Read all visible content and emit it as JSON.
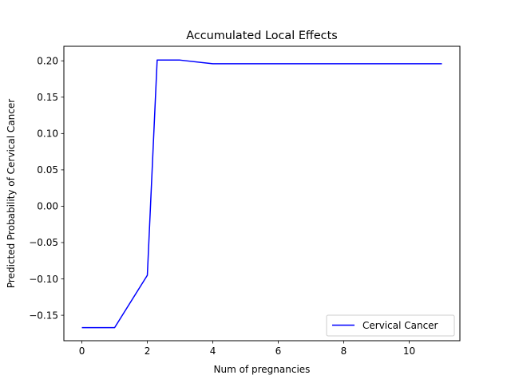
{
  "chart_data": {
    "type": "line",
    "title": "Accumulated Local Effects",
    "xlabel": "Num of pregnancies",
    "ylabel": "Predicted Probability of Cervical Cancer",
    "xlim": [
      -0.55,
      11.55
    ],
    "ylim": [
      -0.185,
      0.22
    ],
    "xticks": [
      0,
      2,
      4,
      6,
      8,
      10
    ],
    "xtick_labels": [
      "0",
      "2",
      "4",
      "6",
      "8",
      "10"
    ],
    "yticks": [
      -0.15,
      -0.1,
      -0.05,
      0.0,
      0.05,
      0.1,
      0.15,
      0.2
    ],
    "ytick_labels": [
      "−0.15",
      "−0.10",
      "−0.05",
      "0.00",
      "0.05",
      "0.10",
      "0.15",
      "0.20"
    ],
    "grid": false,
    "legend": {
      "placement": "lower-right"
    },
    "series": [
      {
        "name": "Cervical Cancer",
        "color": "#0000ff",
        "x": [
          0,
          1,
          2,
          2.3,
          3,
          4,
          11
        ],
        "y": [
          -0.167,
          -0.167,
          -0.095,
          0.201,
          0.201,
          0.196,
          0.196
        ]
      }
    ]
  }
}
